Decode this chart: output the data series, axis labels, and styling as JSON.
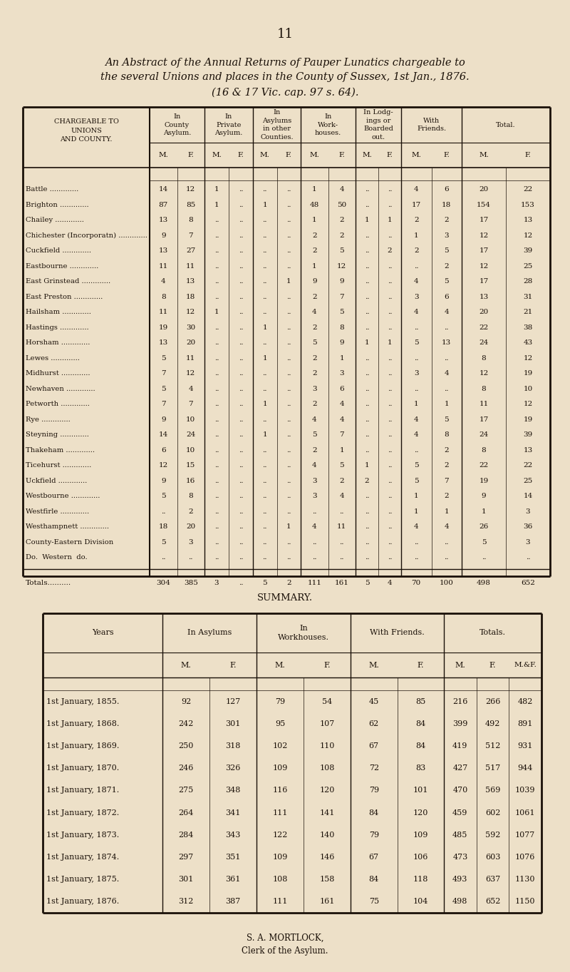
{
  "page_number": "11",
  "title_line1": "An Abstract of the Annual Returns of Pauper Lunatics chargeable to",
  "title_line2": "the several Unions and places in the County of Sussex, 1st Jan., 1876.",
  "title_line3": "(16 & 17 Vic. cap. 97 s. 64).",
  "bg_color": "#EDE0C8",
  "table1": {
    "rows": [
      [
        "Battle",
        14,
        12,
        1,
        "",
        "",
        "",
        1,
        4,
        "",
        "",
        4,
        6,
        20,
        22
      ],
      [
        "Brighton",
        87,
        85,
        1,
        "",
        1,
        "",
        48,
        50,
        "",
        "",
        17,
        18,
        154,
        153
      ],
      [
        "Chailey",
        13,
        8,
        "",
        "",
        "",
        "",
        1,
        2,
        1,
        1,
        2,
        2,
        17,
        13
      ],
      [
        "Chichester (Incorporatn)",
        9,
        7,
        "",
        "",
        "",
        "",
        2,
        2,
        "",
        "",
        1,
        3,
        12,
        12
      ],
      [
        "Cuckfield",
        13,
        27,
        "",
        "",
        "",
        "",
        2,
        5,
        "",
        2,
        2,
        5,
        17,
        39
      ],
      [
        "Eastbourne",
        11,
        11,
        "",
        "",
        "",
        "",
        1,
        12,
        "",
        "",
        "",
        2,
        12,
        25
      ],
      [
        "East Grinstead",
        4,
        13,
        "",
        "",
        "",
        1,
        9,
        9,
        "",
        "",
        4,
        5,
        17,
        28
      ],
      [
        "East Preston",
        8,
        18,
        "",
        "",
        "",
        "",
        2,
        7,
        "",
        "",
        3,
        6,
        13,
        31
      ],
      [
        "Hailsham",
        11,
        12,
        1,
        "",
        "",
        "",
        4,
        5,
        "",
        "",
        4,
        4,
        20,
        21
      ],
      [
        "Hastings",
        19,
        30,
        "",
        "",
        1,
        "",
        2,
        8,
        "",
        "",
        "",
        "",
        22,
        38
      ],
      [
        "Horsham",
        13,
        20,
        "",
        "",
        "",
        "",
        5,
        9,
        1,
        1,
        5,
        13,
        24,
        43
      ],
      [
        "Lewes",
        5,
        11,
        "",
        "",
        1,
        "",
        2,
        1,
        "",
        "",
        "",
        "",
        8,
        12
      ],
      [
        "Midhurst",
        7,
        12,
        "",
        "",
        "",
        "",
        2,
        3,
        "",
        "",
        3,
        4,
        12,
        19
      ],
      [
        "Newhaven",
        5,
        4,
        "",
        "",
        "",
        "",
        3,
        6,
        "",
        "",
        "",
        "",
        8,
        10
      ],
      [
        "Petworth",
        7,
        7,
        "",
        "",
        1,
        "",
        2,
        4,
        "",
        "",
        1,
        1,
        11,
        12
      ],
      [
        "Rye",
        9,
        10,
        "",
        "",
        "",
        "",
        4,
        4,
        "",
        "",
        4,
        5,
        17,
        19
      ],
      [
        "Steyning",
        14,
        24,
        "",
        "",
        1,
        "",
        5,
        7,
        "",
        "",
        4,
        8,
        24,
        39
      ],
      [
        "Thakeham",
        6,
        10,
        "",
        "",
        "",
        "",
        2,
        1,
        "",
        "",
        "",
        2,
        8,
        13
      ],
      [
        "Ticehurst",
        12,
        15,
        "",
        "",
        "",
        "",
        4,
        5,
        1,
        "",
        5,
        2,
        22,
        22
      ],
      [
        "Uckfield",
        9,
        16,
        "",
        "",
        "",
        "",
        3,
        2,
        2,
        "",
        5,
        7,
        19,
        25
      ],
      [
        "Westbourne",
        5,
        8,
        "",
        "",
        "",
        "",
        3,
        4,
        "",
        "",
        1,
        2,
        9,
        14
      ],
      [
        "Westfirle",
        "",
        2,
        "",
        "",
        "",
        "",
        "",
        "",
        "",
        "",
        1,
        1,
        1,
        3
      ],
      [
        "Westhampnett",
        18,
        20,
        "",
        "",
        "",
        1,
        4,
        11,
        "",
        "",
        4,
        4,
        26,
        36
      ],
      [
        "County-Eastern Division",
        5,
        3,
        "",
        "",
        "",
        "",
        "",
        "",
        "",
        "",
        "",
        "",
        5,
        3
      ],
      [
        "Do.  Western  do.",
        "",
        "",
        "",
        "",
        "",
        "",
        "",
        "",
        "",
        "",
        "",
        "",
        "",
        ""
      ]
    ],
    "totals": [
      304,
      385,
      3,
      "",
      5,
      2,
      111,
      161,
      5,
      4,
      70,
      100,
      498,
      652
    ]
  },
  "table2": {
    "rows": [
      [
        "1st January, 1855.",
        92,
        127,
        79,
        54,
        45,
        85,
        216,
        266,
        482
      ],
      [
        "1st January, 1868.",
        242,
        301,
        95,
        107,
        62,
        84,
        399,
        492,
        891
      ],
      [
        "1st January, 1869.",
        250,
        318,
        102,
        110,
        67,
        84,
        419,
        512,
        931
      ],
      [
        "1st January, 1870.",
        246,
        326,
        109,
        108,
        72,
        83,
        427,
        517,
        944
      ],
      [
        "1st January, 1871.",
        275,
        348,
        116,
        120,
        79,
        101,
        470,
        569,
        1039
      ],
      [
        "1st January, 1872.",
        264,
        341,
        111,
        141,
        84,
        120,
        459,
        602,
        1061
      ],
      [
        "1st January, 1873.",
        284,
        343,
        122,
        140,
        79,
        109,
        485,
        592,
        1077
      ],
      [
        "1st January, 1874.",
        297,
        351,
        109,
        146,
        67,
        106,
        473,
        603,
        1076
      ],
      [
        "1st January, 1875.",
        301,
        361,
        108,
        158,
        84,
        118,
        493,
        637,
        1130
      ],
      [
        "1st January, 1876.",
        312,
        387,
        111,
        161,
        75,
        104,
        498,
        652,
        1150
      ]
    ]
  },
  "footer_line1": "S. A. MORTLOCK,",
  "footer_line2": "Clerk of the Asylum."
}
